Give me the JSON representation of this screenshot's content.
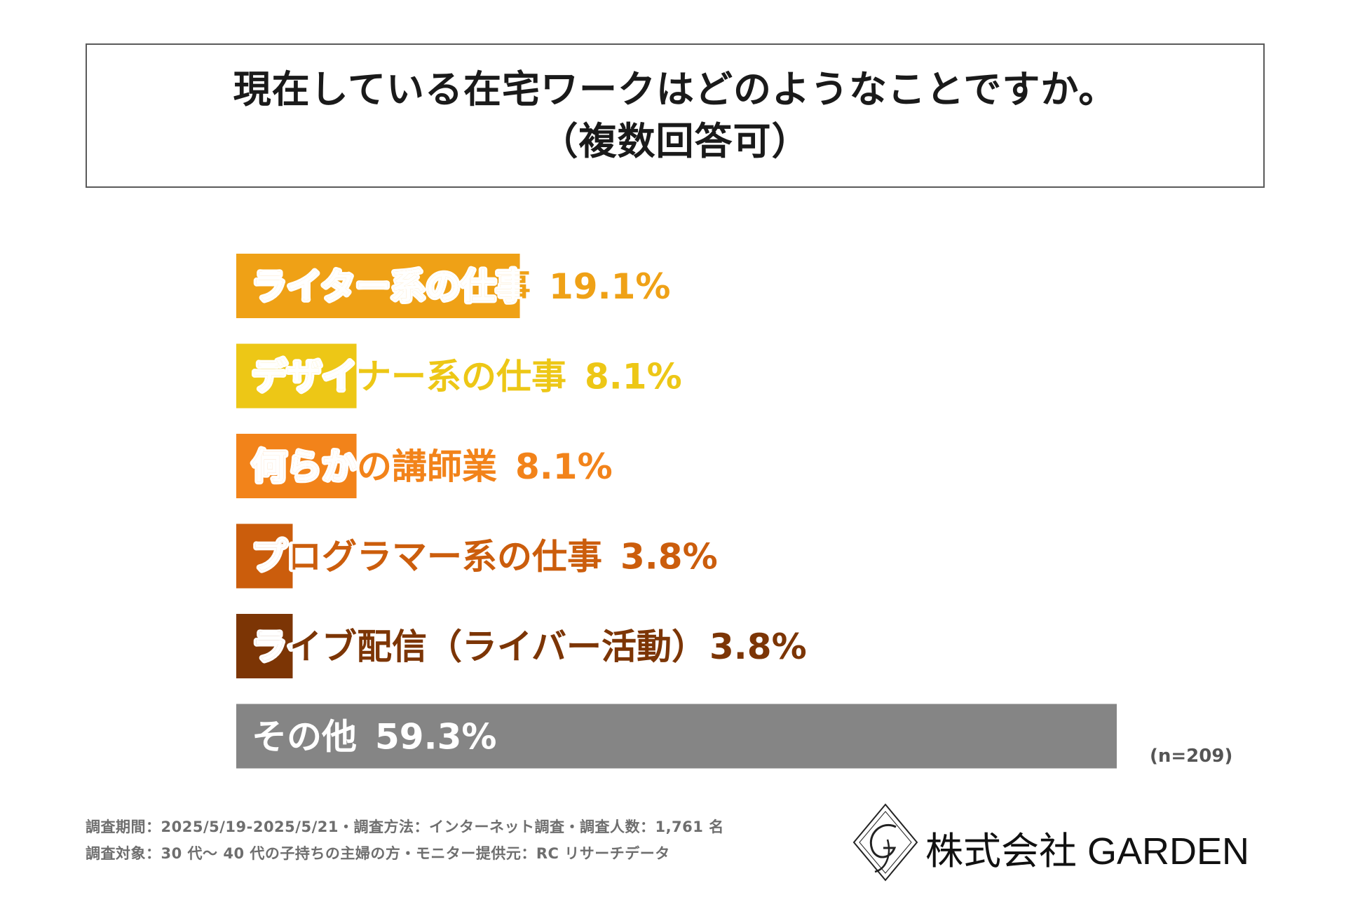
{
  "title": {
    "line1": "現在している在宅ワークはどのようなことですか。",
    "line2": "（複数回答可）"
  },
  "chart_data": {
    "type": "bar",
    "orientation": "horizontal",
    "categories": [
      "ライター系の仕事",
      "デザイナー系の仕事",
      "何らかの講師業",
      "プログラマー系の仕事",
      "ライブ配信（ライバー活動）",
      "その他"
    ],
    "values": [
      19.1,
      8.1,
      8.1,
      3.8,
      3.8,
      59.3
    ],
    "value_labels": [
      "19.1%",
      "8.1%",
      "8.1%",
      "3.8%",
      "3.8%",
      "59.3%"
    ],
    "colors": [
      "#EFA116",
      "#EDC716",
      "#F2831A",
      "#CB5D0C",
      "#7C3505",
      "#858585"
    ],
    "xlim": [
      0,
      59.3
    ],
    "grid": false,
    "legend": "none"
  },
  "sample_note": "(n=209)",
  "footer": {
    "line1": "調査期間：2025/5/19-2025/5/21・調査方法：インターネット調査・調査人数：1,761 名",
    "line2": "調査対象：30 代～ 40 代の子持ちの主婦の方・モニター提供元：RC リサーチデータ"
  },
  "logo": {
    "text": "株式会社 GARDEN",
    "icon": "garden-monogram-icon"
  }
}
